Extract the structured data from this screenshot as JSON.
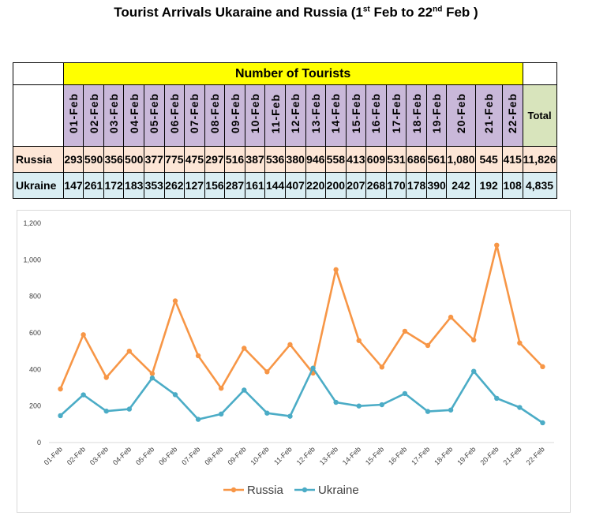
{
  "title": {
    "prefix": "Tourist Arrivals Ukaraine and Russia (1",
    "sup1": "st",
    "middle": " Feb to 22",
    "sup2": "nd",
    "suffix": " Feb )"
  },
  "table": {
    "header": "Number of Tourists",
    "total_label": "Total",
    "dates": [
      "01-Feb",
      "02-Feb",
      "03-Feb",
      "04-Feb",
      "05-Feb",
      "06-Feb",
      "07-Feb",
      "08-Feb",
      "09-Feb",
      "10-Feb",
      "11-Feb",
      "12-Feb",
      "13-Feb",
      "14-Feb",
      "15-Feb",
      "16-Feb",
      "17-Feb",
      "18-Feb",
      "19-Feb",
      "20-Feb",
      "21-Feb",
      "22-Feb"
    ],
    "rows": [
      {
        "label": "Russia",
        "values": [
          "293",
          "590",
          "356",
          "500",
          "377",
          "775",
          "475",
          "297",
          "516",
          "387",
          "536",
          "380",
          "946",
          "558",
          "413",
          "609",
          "531",
          "686",
          "561",
          "1,080",
          "545",
          "415"
        ],
        "total": "11,826"
      },
      {
        "label": "Ukraine",
        "values": [
          "147",
          "261",
          "172",
          "183",
          "353",
          "262",
          "127",
          "156",
          "287",
          "161",
          "144",
          "407",
          "220",
          "200",
          "207",
          "268",
          "170",
          "178",
          "390",
          "242",
          "192",
          "108"
        ],
        "total": "4,835"
      }
    ]
  },
  "chart_data": {
    "type": "line",
    "categories": [
      "01-Feb",
      "02-Feb",
      "03-Feb",
      "04-Feb",
      "05-Feb",
      "06-Feb",
      "07-Feb",
      "08-Feb",
      "09-Feb",
      "10-Feb",
      "11-Feb",
      "12-Feb",
      "13-Feb",
      "14-Feb",
      "15-Feb",
      "16-Feb",
      "17-Feb",
      "18-Feb",
      "19-Feb",
      "20-Feb",
      "21-Feb",
      "22-Feb"
    ],
    "series": [
      {
        "name": "Russia",
        "color": "#f79646",
        "values": [
          293,
          590,
          356,
          500,
          377,
          775,
          475,
          297,
          516,
          387,
          536,
          380,
          946,
          558,
          413,
          609,
          531,
          686,
          561,
          1080,
          545,
          415
        ]
      },
      {
        "name": "Ukraine",
        "color": "#4bacc6",
        "values": [
          147,
          261,
          172,
          183,
          353,
          262,
          127,
          156,
          287,
          161,
          144,
          407,
          220,
          200,
          207,
          268,
          170,
          178,
          390,
          242,
          192,
          108
        ]
      }
    ],
    "ylim": [
      0,
      1200
    ],
    "yticks": [
      "0",
      "200",
      "400",
      "600",
      "800",
      "1,000",
      "1,200"
    ],
    "grid": false,
    "legend": "bottom"
  }
}
